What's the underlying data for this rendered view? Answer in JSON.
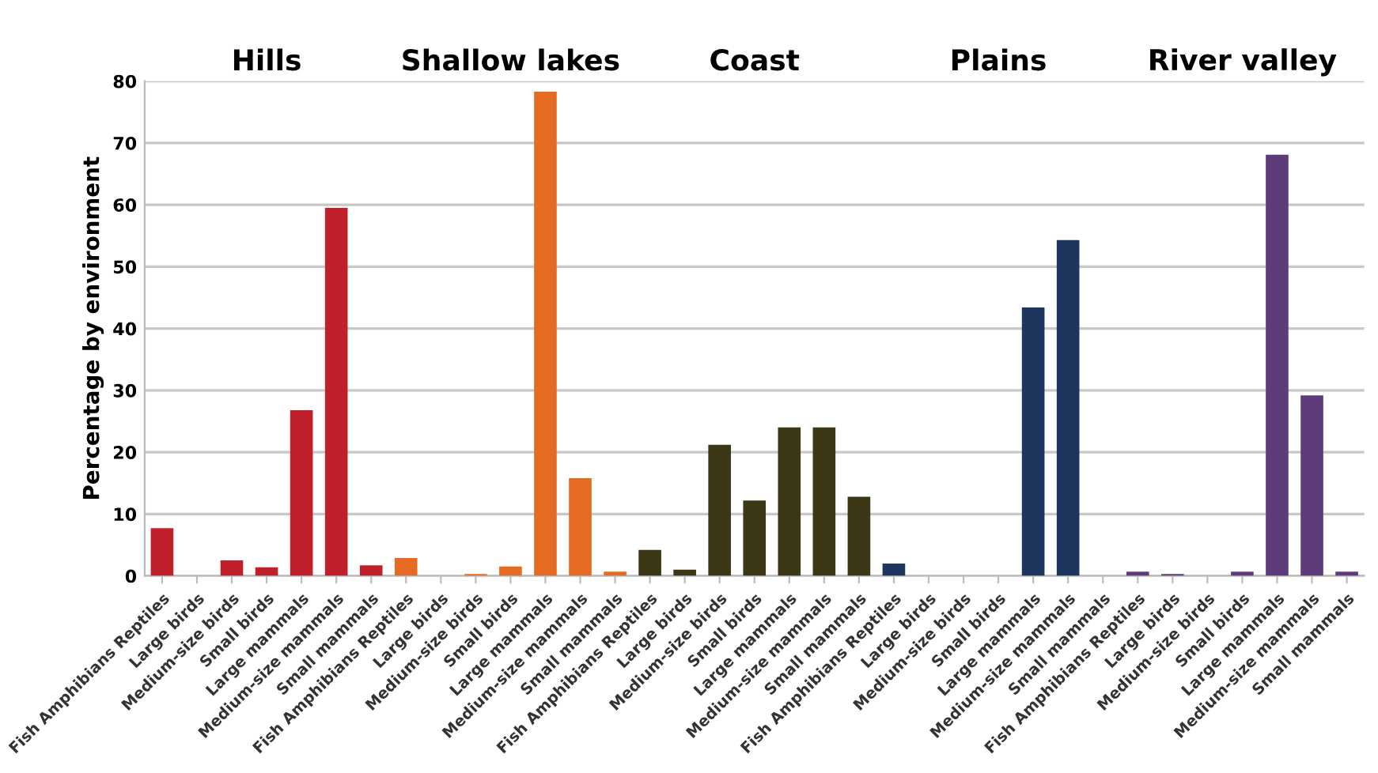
{
  "chart_data": {
    "type": "bar",
    "ylabel": "Percentage by environment",
    "categories": [
      "Fish Amphibians Reptiles",
      "Large birds",
      "Medium-size birds",
      "Small birds",
      "Large mammals",
      "Medium-size mammals",
      "Small mammals",
      "Fish Amphibians Reptiles",
      "Large birds",
      "Medium-size birds",
      "Small birds",
      "Large mammals",
      "Medium-size mammals",
      "Small mammals",
      "Fish Amphibians Reptiles",
      "Large birds",
      "Medium-size birds",
      "Small birds",
      "Large mammals",
      "Medium-size mammals",
      "Small mammals",
      "Fish Amphibians Reptiles",
      "Large birds",
      "Medium-size birds",
      "Small birds",
      "Large mammals",
      "Medium-size mammals",
      "Small mammals",
      "Fish Amphibians Reptiles",
      "Large birds",
      "Medium-size birds",
      "Small birds",
      "Large mammals",
      "Medium-size mammals",
      "Small mammals"
    ],
    "values": [
      7.7,
      0,
      2.5,
      1.4,
      26.8,
      59.5,
      1.7,
      2.9,
      0,
      0.3,
      1.5,
      78.3,
      15.8,
      0.7,
      4.2,
      1.0,
      21.2,
      12.2,
      24.0,
      24.0,
      12.8,
      2.0,
      0,
      0,
      0,
      43.4,
      54.3,
      0,
      0.7,
      0.3,
      0,
      0.7,
      68.1,
      29.2,
      0.7
    ],
    "colors": [
      "#c0202a",
      "#c0202a",
      "#c0202a",
      "#c0202a",
      "#c0202a",
      "#c0202a",
      "#c0202a",
      "#e66b22",
      "#e66b22",
      "#e66b22",
      "#e66b22",
      "#e66b22",
      "#e66b22",
      "#e66b22",
      "#3c3816",
      "#3c3816",
      "#3c3816",
      "#3c3816",
      "#3c3816",
      "#3c3816",
      "#3c3816",
      "#1e355e",
      "#1e355e",
      "#1e355e",
      "#1e355e",
      "#1e355e",
      "#1e355e",
      "#1e355e",
      "#5e3c7a",
      "#5e3c7a",
      "#5e3c7a",
      "#5e3c7a",
      "#5e3c7a",
      "#5e3c7a",
      "#5e3c7a"
    ],
    "annotations": [
      "Hills",
      "Shallow lakes",
      "Coast",
      "Plains",
      "River valley"
    ],
    "ylim": [
      0,
      80
    ],
    "yticks": [
      0,
      10,
      20,
      30,
      40,
      50,
      60,
      70,
      80
    ],
    "grid": "y",
    "legend": false
  }
}
